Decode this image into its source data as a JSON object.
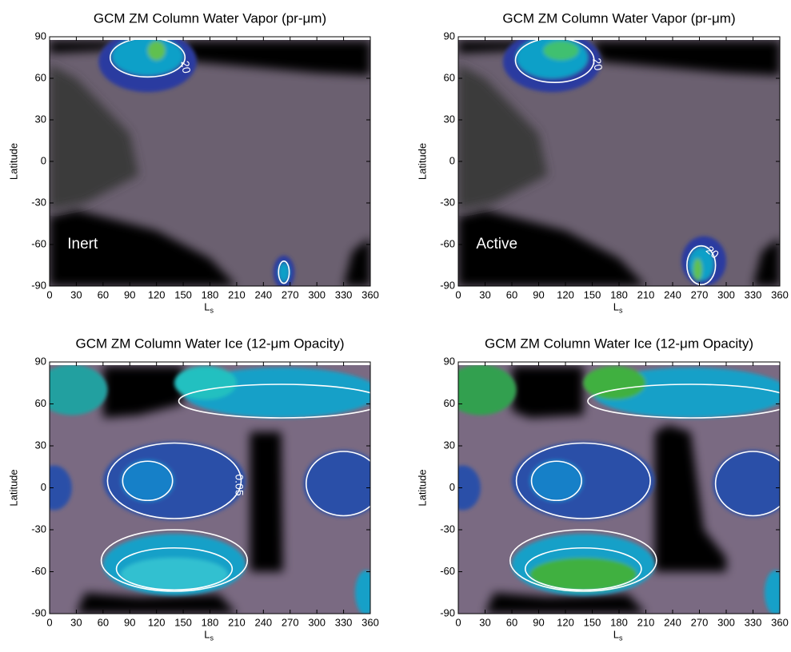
{
  "chart_data": [
    {
      "type": "contour",
      "title": "GCM ZM Column Water Vapor (pr-μm)",
      "xlabel": "L",
      "xlabel_sub": "s",
      "ylabel": "Latitude",
      "annotation": "Inert",
      "contour_levels": [
        20
      ],
      "xlim": [
        0,
        360
      ],
      "xticks": [
        0,
        30,
        60,
        90,
        120,
        150,
        180,
        210,
        240,
        270,
        300,
        330,
        360
      ],
      "ylim": [
        -90,
        90
      ],
      "yticks": [
        -90,
        -60,
        -30,
        0,
        30,
        60,
        90
      ]
    },
    {
      "type": "contour",
      "title": "GCM ZM Column Water Vapor (pr-μm)",
      "xlabel": "L",
      "xlabel_sub": "s",
      "ylabel": "Latitude",
      "annotation": "Active",
      "contour_levels": [
        20
      ],
      "xlim": [
        0,
        360
      ],
      "xticks": [
        0,
        30,
        60,
        90,
        120,
        150,
        180,
        210,
        240,
        270,
        300,
        330,
        360
      ],
      "ylim": [
        -90,
        90
      ],
      "yticks": [
        -90,
        -60,
        -30,
        0,
        30,
        60,
        90
      ]
    },
    {
      "type": "contour",
      "title": "GCM ZM Column Water Ice (12-μm Opacity)",
      "xlabel": "L",
      "xlabel_sub": "s",
      "ylabel": "Latitude",
      "contour_levels": [
        0.05
      ],
      "xlim": [
        0,
        360
      ],
      "xticks": [
        0,
        30,
        60,
        90,
        120,
        150,
        180,
        210,
        240,
        270,
        300,
        330,
        360
      ],
      "ylim": [
        -90,
        90
      ],
      "yticks": [
        -90,
        -60,
        -30,
        0,
        30,
        60,
        90
      ]
    },
    {
      "type": "contour",
      "title": "GCM ZM Column Water Ice (12-μm Opacity)",
      "xlabel": "L",
      "xlabel_sub": "s",
      "ylabel": "Latitude",
      "xlim": [
        0,
        360
      ],
      "xticks": [
        0,
        30,
        60,
        90,
        120,
        150,
        180,
        210,
        240,
        270,
        300,
        330,
        360
      ],
      "ylim": [
        -90,
        90
      ],
      "yticks": [
        -90,
        -60,
        -30,
        0,
        30,
        60,
        90
      ]
    }
  ]
}
